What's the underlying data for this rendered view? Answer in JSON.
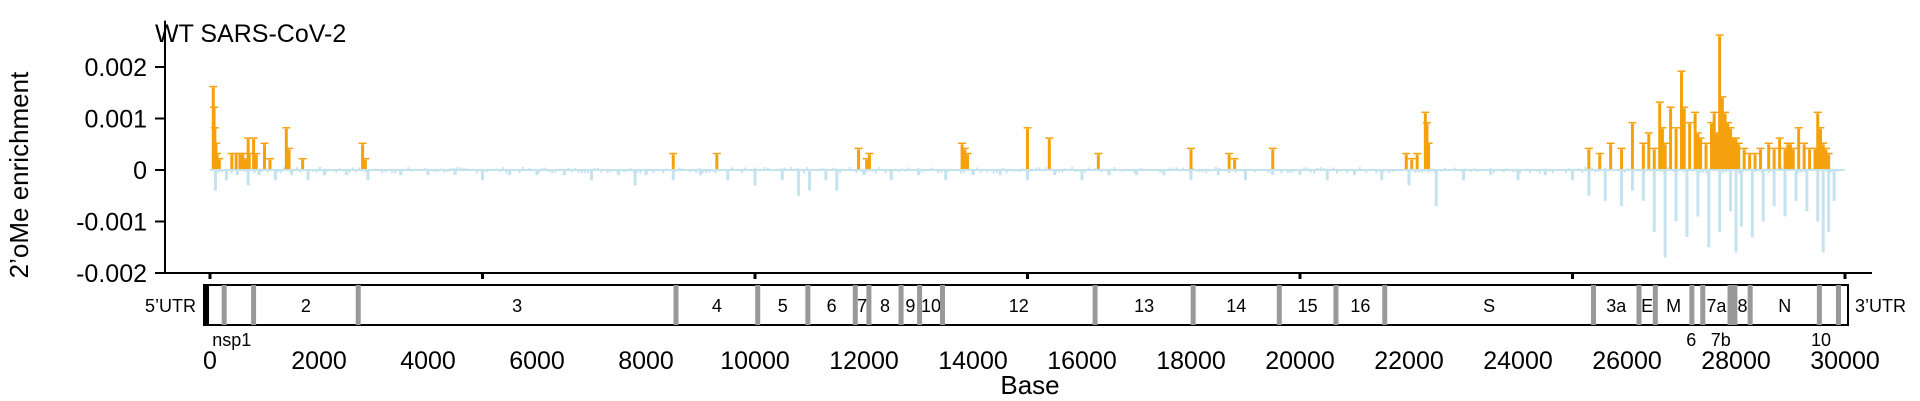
{
  "chart_data": {
    "type": "bar",
    "title": "WT SARS-CoV-2",
    "xlabel": "Base",
    "ylabel": "2’oMe enrichment",
    "xlim": [
      0,
      30000
    ],
    "ylim": [
      -0.002,
      0.0025
    ],
    "x_ticks": [
      0,
      2000,
      4000,
      6000,
      8000,
      10000,
      12000,
      14000,
      16000,
      18000,
      20000,
      22000,
      24000,
      26000,
      28000,
      30000
    ],
    "x_tick_labels": [
      "0",
      "2000",
      "4000",
      "6000",
      "8000",
      "10000",
      "12000",
      "14000",
      "16000",
      "18000",
      "20000",
      "22000",
      "24000",
      "26000",
      "28000",
      "30000"
    ],
    "y_ticks": [
      0.002,
      0.001,
      0,
      -0.001,
      -0.002
    ],
    "y_tick_labels": [
      "0.002",
      "0.001",
      "0",
      "-0.001",
      "-0.002"
    ],
    "grid": false,
    "colors": {
      "significant": "#f5a10c",
      "background": "#c5e3ef",
      "axis": "#000000",
      "gene_divider": "#999999"
    },
    "series": [
      {
        "name": "",
        "color": "#f5a10c",
        "x": [
          60,
          75,
          90,
          110,
          130,
          170,
          400,
          480,
          550,
          600,
          650,
          700,
          720,
          800,
          850,
          1000,
          1100,
          1400,
          1450,
          1700,
          2800,
          2850,
          8500,
          9300,
          11900,
          12050,
          12100,
          13800,
          13850,
          13900,
          15000,
          15400,
          16300,
          18000,
          18700,
          18800,
          19500,
          21950,
          22050,
          22150,
          22300,
          22330,
          22360,
          25300,
          25500,
          25700,
          25900,
          26100,
          26300,
          26400,
          26500,
          26600,
          26650,
          26700,
          26800,
          26900,
          27000,
          27050,
          27150,
          27250,
          27300,
          27350,
          27450,
          27550,
          27600,
          27650,
          27700,
          27750,
          27800,
          27850,
          27900,
          27950,
          28000,
          28050,
          28150,
          28250,
          28350,
          28450,
          28600,
          28700,
          28800,
          28900,
          28950,
          29000,
          29050,
          29150,
          29250,
          29350,
          29450,
          29500,
          29550,
          29600,
          29650,
          29700
        ],
        "values": [
          0.0016,
          0.0012,
          0.0008,
          0.0005,
          0.0003,
          0.0002,
          0.0003,
          0.0003,
          0.0003,
          0.0003,
          0.0002,
          0.0006,
          0.0003,
          0.0006,
          0.0003,
          0.0005,
          0.0002,
          0.0008,
          0.0004,
          0.0002,
          0.0005,
          0.0002,
          0.0003,
          0.0003,
          0.0004,
          0.0002,
          0.0003,
          0.0005,
          0.0004,
          0.0003,
          0.0008,
          0.0006,
          0.0003,
          0.0004,
          0.0003,
          0.0002,
          0.0004,
          0.0003,
          0.0002,
          0.0003,
          0.0011,
          0.0009,
          0.0005,
          0.0004,
          0.0003,
          0.0005,
          0.0004,
          0.0009,
          0.0005,
          0.0007,
          0.0004,
          0.0013,
          0.0008,
          0.0005,
          0.0012,
          0.0008,
          0.0019,
          0.0012,
          0.0009,
          0.0011,
          0.0007,
          0.0006,
          0.0005,
          0.0009,
          0.0011,
          0.0007,
          0.0026,
          0.0014,
          0.0011,
          0.0009,
          0.0008,
          0.0006,
          0.0006,
          0.0005,
          0.0004,
          0.0003,
          0.0003,
          0.0004,
          0.0005,
          0.0004,
          0.0006,
          0.0004,
          0.0005,
          0.0005,
          0.0004,
          0.0008,
          0.0005,
          0.0004,
          0.0004,
          0.0011,
          0.0008,
          0.0005,
          0.0004,
          0.0003
        ]
      },
      {
        "name": "",
        "color": "#c5e3ef",
        "x": [
          100,
          300,
          500,
          700,
          900,
          1200,
          1500,
          1800,
          2100,
          2500,
          2900,
          3500,
          4000,
          4500,
          5000,
          5500,
          6000,
          6500,
          7000,
          7500,
          7800,
          8000,
          8500,
          9000,
          9500,
          10000,
          10500,
          10800,
          11000,
          11300,
          11500,
          12000,
          12500,
          13000,
          13500,
          14000,
          14500,
          15000,
          15500,
          16000,
          16500,
          17000,
          17500,
          18000,
          18500,
          19000,
          19500,
          20000,
          20500,
          21000,
          21500,
          22000,
          22500,
          23000,
          23500,
          24000,
          24500,
          25000,
          25300,
          25600,
          25900,
          26100,
          26300,
          26500,
          26700,
          26900,
          27100,
          27300,
          27500,
          27700,
          27900,
          28000,
          28100,
          28300,
          28500,
          28700,
          28900,
          29100,
          29300,
          29500,
          29600,
          29700,
          29800
        ],
        "values": [
          -0.0004,
          -0.0002,
          -0.0001,
          -0.0003,
          -0.0001,
          -0.0002,
          -0.0001,
          -0.0002,
          -0.0001,
          -0.0001,
          -0.0002,
          -0.0001,
          -0.0001,
          -0.0001,
          -0.0002,
          -0.0001,
          -0.0001,
          -0.0001,
          -0.0002,
          -0.0001,
          -0.0003,
          -0.0001,
          -0.0002,
          -0.0001,
          -0.0002,
          -0.0003,
          -0.0002,
          -0.0005,
          -0.0004,
          -0.0002,
          -0.0004,
          -0.0001,
          -0.0002,
          -0.0001,
          -0.0002,
          -0.0001,
          -0.0001,
          -0.0002,
          -0.0001,
          -0.0002,
          -0.0001,
          -0.0001,
          -0.0001,
          -0.0002,
          -0.0001,
          -0.0002,
          -0.0001,
          -0.0001,
          -0.0002,
          -0.0001,
          -0.0002,
          -0.0003,
          -0.0007,
          -0.0002,
          -0.0001,
          -0.0002,
          -0.0001,
          -0.0002,
          -0.0005,
          -0.0006,
          -0.0007,
          -0.0004,
          -0.0006,
          -0.0012,
          -0.0017,
          -0.001,
          -0.0013,
          -0.0009,
          -0.0015,
          -0.0012,
          -0.0008,
          -0.0016,
          -0.0011,
          -0.0013,
          -0.001,
          -0.0007,
          -0.0009,
          -0.0006,
          -0.0008,
          -0.001,
          -0.0016,
          -0.0012,
          -0.0006
        ]
      }
    ],
    "genome_map": {
      "left_label": "5’UTR",
      "right_label": "3’UTR",
      "genes": [
        {
          "label": "",
          "start": 0,
          "end": 260
        },
        {
          "label": "",
          "start": 260,
          "end": 800
        },
        {
          "label": "2",
          "start": 800,
          "end": 2720
        },
        {
          "label": "3",
          "start": 2720,
          "end": 8550
        },
        {
          "label": "4",
          "start": 8550,
          "end": 10050
        },
        {
          "label": "5",
          "start": 10050,
          "end": 10970
        },
        {
          "label": "6",
          "start": 10970,
          "end": 11840
        },
        {
          "label": "7",
          "start": 11840,
          "end": 12090
        },
        {
          "label": "8",
          "start": 12090,
          "end": 12680
        },
        {
          "label": "9",
          "start": 12680,
          "end": 13020
        },
        {
          "label": "10",
          "start": 13020,
          "end": 13440
        },
        {
          "label": "12",
          "start": 13440,
          "end": 16240
        },
        {
          "label": "13",
          "start": 16240,
          "end": 18040
        },
        {
          "label": "14",
          "start": 18040,
          "end": 19620
        },
        {
          "label": "15",
          "start": 19620,
          "end": 20660
        },
        {
          "label": "16",
          "start": 20660,
          "end": 21555
        },
        {
          "label": "S",
          "start": 21555,
          "end": 25385
        },
        {
          "label": "3a",
          "start": 25385,
          "end": 26220
        },
        {
          "label": "E",
          "start": 26220,
          "end": 26520
        },
        {
          "label": "M",
          "start": 26520,
          "end": 27190
        },
        {
          "label": "",
          "start": 27190,
          "end": 27390
        },
        {
          "label": "7a",
          "start": 27390,
          "end": 27890
        },
        {
          "label": "",
          "start": 27890,
          "end": 27980
        },
        {
          "label": "8",
          "start": 27980,
          "end": 28260
        },
        {
          "label": "N",
          "start": 28260,
          "end": 29530
        },
        {
          "label": "",
          "start": 29530,
          "end": 29880
        }
      ],
      "annotations": [
        {
          "label": "nsp1",
          "x": 400
        },
        {
          "label": "6",
          "x": 27180
        },
        {
          "label": "7b",
          "x": 27720
        },
        {
          "label": "10",
          "x": 29560
        }
      ]
    }
  }
}
